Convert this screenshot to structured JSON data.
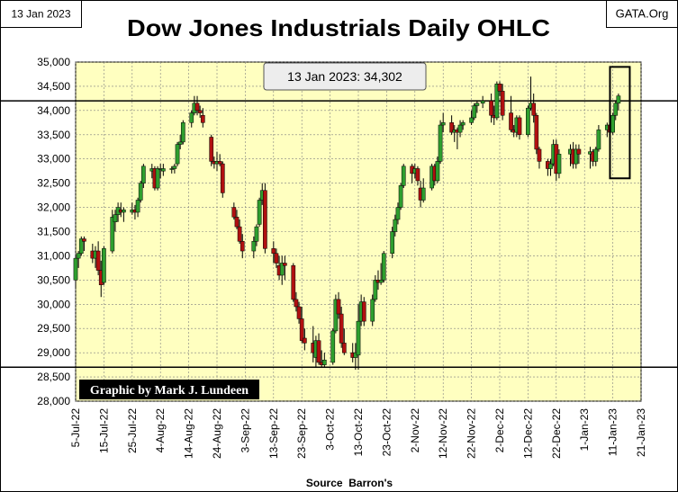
{
  "chart_data": {
    "type": "ohlc",
    "title": "Dow Jones Industrials Daily OHLC",
    "date_label": "13 Jan 2023",
    "source_label": "GATA.Org",
    "annotation": "13 Jan 2023: 34,302",
    "credit": "Graphic by Mark J. Lundeen",
    "xlabel": "Source  Barron's",
    "ylabel": "",
    "ylim": [
      28000,
      35000
    ],
    "y_ticks": [
      {
        "value": 28000,
        "label": "28,000"
      },
      {
        "value": 28500,
        "label": "28,500"
      },
      {
        "value": 29000,
        "label": "29,000"
      },
      {
        "value": 29500,
        "label": "29,500"
      },
      {
        "value": 30000,
        "label": "30,000"
      },
      {
        "value": 30500,
        "label": "30,500"
      },
      {
        "value": 31000,
        "label": "31,000"
      },
      {
        "value": 31500,
        "label": "31,500"
      },
      {
        "value": 32000,
        "label": "32,000"
      },
      {
        "value": 32500,
        "label": "32,500"
      },
      {
        "value": 33000,
        "label": "33,000"
      },
      {
        "value": 33500,
        "label": "33,500"
      },
      {
        "value": 34000,
        "label": "34,000"
      },
      {
        "value": 34500,
        "label": "34,500"
      },
      {
        "value": 35000,
        "label": "35,000"
      }
    ],
    "x_range_days": [
      0,
      200
    ],
    "x_ticks": [
      {
        "day": 0,
        "label": "5-Jul-22"
      },
      {
        "day": 10,
        "label": "15-Jul-22"
      },
      {
        "day": 20,
        "label": "25-Jul-22"
      },
      {
        "day": 30,
        "label": "4-Aug-22"
      },
      {
        "day": 40,
        "label": "14-Aug-22"
      },
      {
        "day": 50,
        "label": "24-Aug-22"
      },
      {
        "day": 60,
        "label": "3-Sep-22"
      },
      {
        "day": 70,
        "label": "13-Sep-22"
      },
      {
        "day": 80,
        "label": "23-Sep-22"
      },
      {
        "day": 90,
        "label": "3-Oct-22"
      },
      {
        "day": 100,
        "label": "13-Oct-22"
      },
      {
        "day": 110,
        "label": "23-Oct-22"
      },
      {
        "day": 120,
        "label": "2-Nov-22"
      },
      {
        "day": 130,
        "label": "12-Nov-22"
      },
      {
        "day": 140,
        "label": "22-Nov-22"
      },
      {
        "day": 150,
        "label": "2-Dec-22"
      },
      {
        "day": 160,
        "label": "12-Dec-22"
      },
      {
        "day": 170,
        "label": "22-Dec-22"
      },
      {
        "day": 180,
        "label": "1-Jan-23"
      },
      {
        "day": 190,
        "label": "11-Jan-23"
      },
      {
        "day": 200,
        "label": "21-Jan-23"
      }
    ],
    "reference_lines": [
      34200,
      28700
    ],
    "highlight_box": {
      "day_start": 189,
      "day_end": 196,
      "low": 32600,
      "high": 34900
    },
    "series": [
      {
        "day": 0,
        "o": 30500,
        "h": 31000,
        "l": 30350,
        "c": 30950
      },
      {
        "day": 1,
        "o": 30950,
        "h": 31100,
        "l": 30750,
        "c": 31050
      },
      {
        "day": 2,
        "o": 31050,
        "h": 31400,
        "l": 31000,
        "c": 31350
      },
      {
        "day": 3,
        "o": 31350,
        "h": 31400,
        "l": 31100,
        "c": 31300
      },
      {
        "day": 6,
        "o": 31100,
        "h": 31250,
        "l": 30850,
        "c": 30950
      },
      {
        "day": 7,
        "o": 30950,
        "h": 31200,
        "l": 30750,
        "c": 31100
      },
      {
        "day": 8,
        "o": 31100,
        "h": 31300,
        "l": 30600,
        "c": 30700
      },
      {
        "day": 9,
        "o": 30700,
        "h": 30900,
        "l": 30150,
        "c": 30400
      },
      {
        "day": 10,
        "o": 30450,
        "h": 31200,
        "l": 30400,
        "c": 31150
      },
      {
        "day": 13,
        "o": 31100,
        "h": 31950,
        "l": 31050,
        "c": 31800
      },
      {
        "day": 14,
        "o": 31700,
        "h": 31950,
        "l": 31500,
        "c": 31850
      },
      {
        "day": 15,
        "o": 31850,
        "h": 32100,
        "l": 31700,
        "c": 32000
      },
      {
        "day": 16,
        "o": 31950,
        "h": 32100,
        "l": 31800,
        "c": 31900
      },
      {
        "day": 17,
        "o": 31900,
        "h": 32000,
        "l": 31700,
        "c": 31950
      },
      {
        "day": 20,
        "o": 31900,
        "h": 32100,
        "l": 31850,
        "c": 31950
      },
      {
        "day": 21,
        "o": 31950,
        "h": 32050,
        "l": 31750,
        "c": 31900
      },
      {
        "day": 22,
        "o": 31900,
        "h": 32200,
        "l": 31800,
        "c": 32150
      },
      {
        "day": 23,
        "o": 32150,
        "h": 32550,
        "l": 32100,
        "c": 32500
      },
      {
        "day": 24,
        "o": 32500,
        "h": 32900,
        "l": 32400,
        "c": 32850
      },
      {
        "day": 27,
        "o": 32750,
        "h": 32900,
        "l": 32600,
        "c": 32800
      },
      {
        "day": 28,
        "o": 32800,
        "h": 32850,
        "l": 32350,
        "c": 32400
      },
      {
        "day": 29,
        "o": 32400,
        "h": 32850,
        "l": 32350,
        "c": 32800
      },
      {
        "day": 30,
        "o": 32800,
        "h": 32900,
        "l": 32600,
        "c": 32800
      },
      {
        "day": 31,
        "o": 32750,
        "h": 32900,
        "l": 32650,
        "c": 32800
      },
      {
        "day": 34,
        "o": 32800,
        "h": 32850,
        "l": 32700,
        "c": 32800
      },
      {
        "day": 35,
        "o": 32800,
        "h": 32900,
        "l": 32700,
        "c": 32850
      },
      {
        "day": 36,
        "o": 32900,
        "h": 33350,
        "l": 32850,
        "c": 33300
      },
      {
        "day": 37,
        "o": 33300,
        "h": 33500,
        "l": 33200,
        "c": 33350
      },
      {
        "day": 38,
        "o": 33350,
        "h": 33800,
        "l": 33300,
        "c": 33750
      },
      {
        "day": 41,
        "o": 33750,
        "h": 34000,
        "l": 33650,
        "c": 33950
      },
      {
        "day": 42,
        "o": 33950,
        "h": 34300,
        "l": 33900,
        "c": 34150
      },
      {
        "day": 43,
        "o": 34150,
        "h": 34300,
        "l": 33900,
        "c": 34000
      },
      {
        "day": 44,
        "o": 34000,
        "h": 34100,
        "l": 33850,
        "c": 33950
      },
      {
        "day": 45,
        "o": 33900,
        "h": 34050,
        "l": 33650,
        "c": 33750
      },
      {
        "day": 48,
        "o": 33450,
        "h": 33500,
        "l": 32850,
        "c": 32950
      },
      {
        "day": 49,
        "o": 32950,
        "h": 33050,
        "l": 32800,
        "c": 32900
      },
      {
        "day": 50,
        "o": 32900,
        "h": 33150,
        "l": 32750,
        "c": 32950
      },
      {
        "day": 51,
        "o": 32950,
        "h": 33100,
        "l": 32850,
        "c": 32900
      },
      {
        "day": 52,
        "o": 32900,
        "h": 32950,
        "l": 32200,
        "c": 32300
      },
      {
        "day": 56,
        "o": 32000,
        "h": 32100,
        "l": 31750,
        "c": 31800
      },
      {
        "day": 57,
        "o": 31800,
        "h": 31950,
        "l": 31550,
        "c": 31600
      },
      {
        "day": 58,
        "o": 31600,
        "h": 31750,
        "l": 31250,
        "c": 31300
      },
      {
        "day": 59,
        "o": 31300,
        "h": 31450,
        "l": 30950,
        "c": 31100
      },
      {
        "day": 63,
        "o": 31100,
        "h": 31400,
        "l": 30950,
        "c": 31300
      },
      {
        "day": 64,
        "o": 31300,
        "h": 31650,
        "l": 31200,
        "c": 31600
      },
      {
        "day": 65,
        "o": 31650,
        "h": 32200,
        "l": 31600,
        "c": 32150
      },
      {
        "day": 66,
        "o": 32150,
        "h": 32500,
        "l": 32050,
        "c": 32350
      },
      {
        "day": 67,
        "o": 32350,
        "h": 32500,
        "l": 31050,
        "c": 31150
      },
      {
        "day": 70,
        "o": 31150,
        "h": 31300,
        "l": 30850,
        "c": 31050
      },
      {
        "day": 71,
        "o": 31050,
        "h": 31150,
        "l": 30750,
        "c": 30850
      },
      {
        "day": 72,
        "o": 30800,
        "h": 31000,
        "l": 30500,
        "c": 30600
      },
      {
        "day": 73,
        "o": 30600,
        "h": 31000,
        "l": 30400,
        "c": 30850
      },
      {
        "day": 74,
        "o": 30850,
        "h": 31000,
        "l": 30500,
        "c": 30800
      },
      {
        "day": 77,
        "o": 30800,
        "h": 30850,
        "l": 30050,
        "c": 30100
      },
      {
        "day": 78,
        "o": 30100,
        "h": 30250,
        "l": 29850,
        "c": 29950
      },
      {
        "day": 79,
        "o": 29950,
        "h": 30050,
        "l": 29600,
        "c": 29700
      },
      {
        "day": 80,
        "o": 29700,
        "h": 29950,
        "l": 29200,
        "c": 29250
      },
      {
        "day": 81,
        "o": 29300,
        "h": 29500,
        "l": 29050,
        "c": 29200
      },
      {
        "day": 84,
        "o": 29200,
        "h": 29550,
        "l": 28800,
        "c": 29000
      },
      {
        "day": 85,
        "o": 28900,
        "h": 29350,
        "l": 28700,
        "c": 29250
      },
      {
        "day": 86,
        "o": 29250,
        "h": 29400,
        "l": 28750,
        "c": 28800
      },
      {
        "day": 87,
        "o": 28800,
        "h": 29050,
        "l": 28700,
        "c": 28750
      },
      {
        "day": 88,
        "o": 28750,
        "h": 29000,
        "l": 28700,
        "c": 28850
      },
      {
        "day": 91,
        "o": 28800,
        "h": 29500,
        "l": 28750,
        "c": 29450
      },
      {
        "day": 92,
        "o": 29450,
        "h": 30200,
        "l": 29400,
        "c": 30100
      },
      {
        "day": 93,
        "o": 30100,
        "h": 30250,
        "l": 29700,
        "c": 29800
      },
      {
        "day": 94,
        "o": 29800,
        "h": 29950,
        "l": 29100,
        "c": 29200
      },
      {
        "day": 95,
        "o": 29200,
        "h": 29500,
        "l": 28950,
        "c": 29000
      },
      {
        "day": 98,
        "o": 29000,
        "h": 29200,
        "l": 28800,
        "c": 28900
      },
      {
        "day": 99,
        "o": 28900,
        "h": 29200,
        "l": 28650,
        "c": 29000
      },
      {
        "day": 100,
        "o": 28950,
        "h": 30000,
        "l": 28650,
        "c": 29650
      },
      {
        "day": 101,
        "o": 29650,
        "h": 30200,
        "l": 29550,
        "c": 30050
      },
      {
        "day": 102,
        "o": 30050,
        "h": 30150,
        "l": 29550,
        "c": 29650
      },
      {
        "day": 105,
        "o": 29650,
        "h": 30200,
        "l": 29550,
        "c": 30100
      },
      {
        "day": 106,
        "o": 30100,
        "h": 30600,
        "l": 30050,
        "c": 30500
      },
      {
        "day": 107,
        "o": 30500,
        "h": 30700,
        "l": 30300,
        "c": 30450
      },
      {
        "day": 108,
        "o": 30450,
        "h": 30850,
        "l": 30400,
        "c": 30500
      },
      {
        "day": 109,
        "o": 30500,
        "h": 31100,
        "l": 30450,
        "c": 31050
      },
      {
        "day": 112,
        "o": 31050,
        "h": 31600,
        "l": 30950,
        "c": 31500
      },
      {
        "day": 113,
        "o": 31500,
        "h": 31850,
        "l": 31400,
        "c": 31750
      },
      {
        "day": 114,
        "o": 31750,
        "h": 32100,
        "l": 31650,
        "c": 32000
      },
      {
        "day": 115,
        "o": 32000,
        "h": 32500,
        "l": 31950,
        "c": 32450
      },
      {
        "day": 116,
        "o": 32450,
        "h": 32900,
        "l": 32400,
        "c": 32850
      },
      {
        "day": 119,
        "o": 32850,
        "h": 32900,
        "l": 32500,
        "c": 32700
      },
      {
        "day": 120,
        "o": 32700,
        "h": 32900,
        "l": 32600,
        "c": 32800
      },
      {
        "day": 121,
        "o": 32800,
        "h": 32850,
        "l": 32450,
        "c": 32550
      },
      {
        "day": 122,
        "o": 32400,
        "h": 32550,
        "l": 32000,
        "c": 32150
      },
      {
        "day": 123,
        "o": 32150,
        "h": 32600,
        "l": 32100,
        "c": 32400
      },
      {
        "day": 126,
        "o": 32400,
        "h": 32900,
        "l": 32350,
        "c": 32850
      },
      {
        "day": 127,
        "o": 32850,
        "h": 32900,
        "l": 32450,
        "c": 32550
      },
      {
        "day": 128,
        "o": 32550,
        "h": 33050,
        "l": 32500,
        "c": 32950
      },
      {
        "day": 129,
        "o": 32950,
        "h": 33800,
        "l": 32900,
        "c": 33700
      },
      {
        "day": 130,
        "o": 33700,
        "h": 33950,
        "l": 33550,
        "c": 33750
      },
      {
        "day": 133,
        "o": 33750,
        "h": 33900,
        "l": 33500,
        "c": 33550
      },
      {
        "day": 134,
        "o": 33550,
        "h": 33700,
        "l": 33350,
        "c": 33600
      },
      {
        "day": 135,
        "o": 33600,
        "h": 33650,
        "l": 33200,
        "c": 33550
      },
      {
        "day": 136,
        "o": 33550,
        "h": 33800,
        "l": 33450,
        "c": 33700
      },
      {
        "day": 137,
        "o": 33700,
        "h": 33800,
        "l": 33600,
        "c": 33750
      },
      {
        "day": 140,
        "o": 33750,
        "h": 34000,
        "l": 33700,
        "c": 33850
      },
      {
        "day": 141,
        "o": 33850,
        "h": 34150,
        "l": 33800,
        "c": 34100
      },
      {
        "day": 142,
        "o": 34100,
        "h": 34200,
        "l": 33950,
        "c": 34150
      },
      {
        "day": 144,
        "o": 34150,
        "h": 34300,
        "l": 34050,
        "c": 34200
      },
      {
        "day": 147,
        "o": 34200,
        "h": 34350,
        "l": 33750,
        "c": 33900
      },
      {
        "day": 148,
        "o": 33900,
        "h": 34100,
        "l": 33700,
        "c": 33850
      },
      {
        "day": 149,
        "o": 33850,
        "h": 34600,
        "l": 33800,
        "c": 34550
      },
      {
        "day": 150,
        "o": 34550,
        "h": 34600,
        "l": 34300,
        "c": 34400
      },
      {
        "day": 151,
        "o": 34400,
        "h": 34550,
        "l": 33800,
        "c": 33900
      },
      {
        "day": 154,
        "o": 33950,
        "h": 34300,
        "l": 33550,
        "c": 33600
      },
      {
        "day": 155,
        "o": 33600,
        "h": 33700,
        "l": 33450,
        "c": 33550
      },
      {
        "day": 156,
        "o": 33550,
        "h": 33900,
        "l": 33450,
        "c": 33850
      },
      {
        "day": 157,
        "o": 33850,
        "h": 33900,
        "l": 33400,
        "c": 33500
      },
      {
        "day": 160,
        "o": 33500,
        "h": 34100,
        "l": 33450,
        "c": 34050
      },
      {
        "day": 161,
        "o": 34050,
        "h": 34700,
        "l": 34000,
        "c": 34150
      },
      {
        "day": 162,
        "o": 34150,
        "h": 34350,
        "l": 33750,
        "c": 33900
      },
      {
        "day": 163,
        "o": 33900,
        "h": 33950,
        "l": 33100,
        "c": 33200
      },
      {
        "day": 164,
        "o": 33200,
        "h": 33250,
        "l": 32800,
        "c": 32950
      },
      {
        "day": 167,
        "o": 32950,
        "h": 33000,
        "l": 32650,
        "c": 32800
      },
      {
        "day": 168,
        "o": 32800,
        "h": 33000,
        "l": 32650,
        "c": 32900
      },
      {
        "day": 169,
        "o": 32900,
        "h": 33400,
        "l": 32850,
        "c": 33300
      },
      {
        "day": 170,
        "o": 33300,
        "h": 33400,
        "l": 32550,
        "c": 32700
      },
      {
        "day": 171,
        "o": 32700,
        "h": 33200,
        "l": 32600,
        "c": 33100
      },
      {
        "day": 175,
        "o": 33100,
        "h": 33300,
        "l": 32850,
        "c": 33200
      },
      {
        "day": 176,
        "o": 33200,
        "h": 33350,
        "l": 32800,
        "c": 32900
      },
      {
        "day": 177,
        "o": 32900,
        "h": 33300,
        "l": 32800,
        "c": 33200
      },
      {
        "day": 178,
        "o": 33200,
        "h": 33300,
        "l": 32900,
        "c": 33100
      },
      {
        "day": 182,
        "o": 33100,
        "h": 33250,
        "l": 32800,
        "c": 33150
      },
      {
        "day": 183,
        "o": 33150,
        "h": 33200,
        "l": 32850,
        "c": 32950
      },
      {
        "day": 184,
        "o": 32950,
        "h": 33250,
        "l": 32850,
        "c": 33200
      },
      {
        "day": 185,
        "o": 33200,
        "h": 33700,
        "l": 33150,
        "c": 33600
      },
      {
        "day": 188,
        "o": 33600,
        "h": 33750,
        "l": 33450,
        "c": 33700
      },
      {
        "day": 189,
        "o": 33700,
        "h": 33850,
        "l": 33400,
        "c": 33550
      },
      {
        "day": 190,
        "o": 33550,
        "h": 33950,
        "l": 33500,
        "c": 33900
      },
      {
        "day": 191,
        "o": 33900,
        "h": 34200,
        "l": 33800,
        "c": 34150
      },
      {
        "day": 192,
        "o": 34150,
        "h": 34350,
        "l": 34000,
        "c": 34302
      }
    ]
  },
  "colors": {
    "plot_bg": "#FFFFC0",
    "up_fill": "#2E9E2E",
    "down_fill": "#B01010",
    "grid": "#7F7F7F",
    "credit_bg": "#000000",
    "credit_fg": "#FFFFFF",
    "annotation_bg": "#EDEDED"
  }
}
